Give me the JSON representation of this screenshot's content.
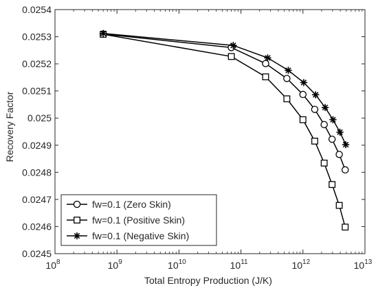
{
  "chart_data": {
    "type": "line",
    "xlabel": "Total Entropy Production (J/K)",
    "ylabel": "Recovery Factor",
    "xscale": "log",
    "xlim": [
      100000000,
      10000000000000
    ],
    "ylim": [
      0.0245,
      0.0254
    ],
    "grid": false,
    "legend_position": "bottom-left",
    "x_ticks": [
      {
        "value": 100000000,
        "base": "10",
        "exp": "8"
      },
      {
        "value": 1000000000,
        "base": "10",
        "exp": "9"
      },
      {
        "value": 10000000000,
        "base": "10",
        "exp": "10"
      },
      {
        "value": 100000000000,
        "base": "10",
        "exp": "11"
      },
      {
        "value": 1000000000000,
        "base": "10",
        "exp": "12"
      },
      {
        "value": 10000000000000,
        "base": "10",
        "exp": "13"
      }
    ],
    "y_ticks": [
      {
        "value": 0.0245,
        "label": "0.0245"
      },
      {
        "value": 0.0246,
        "label": "0.0246"
      },
      {
        "value": 0.0247,
        "label": "0.0247"
      },
      {
        "value": 0.0248,
        "label": "0.0248"
      },
      {
        "value": 0.0249,
        "label": "0.0249"
      },
      {
        "value": 0.025,
        "label": "0.025"
      },
      {
        "value": 0.0251,
        "label": "0.0251"
      },
      {
        "value": 0.0252,
        "label": "0.0252"
      },
      {
        "value": 0.0253,
        "label": "0.0253"
      },
      {
        "value": 0.0254,
        "label": "0.0254"
      }
    ],
    "series": [
      {
        "name": "fw=0.1 (Zero Skin)",
        "marker": "circle",
        "color": "#000000",
        "points": [
          [
            600000000,
            0.02531
          ],
          [
            70000000000,
            0.02526
          ],
          [
            250000000000,
            0.025201
          ],
          [
            550000000000,
            0.025146
          ],
          [
            1000000000000,
            0.025087
          ],
          [
            1550000000000,
            0.025032
          ],
          [
            2200000000000,
            0.024976
          ],
          [
            2950000000000,
            0.024922
          ],
          [
            3850000000000,
            0.024866
          ],
          [
            4800000000000,
            0.024809
          ]
        ]
      },
      {
        "name": "fw=0.1 (Positive Skin)",
        "marker": "square",
        "color": "#000000",
        "points": [
          [
            600000000,
            0.025309
          ],
          [
            70000000000,
            0.025227
          ],
          [
            250000000000,
            0.025152
          ],
          [
            550000000000,
            0.025071
          ],
          [
            1000000000000,
            0.024994
          ],
          [
            1550000000000,
            0.024915
          ],
          [
            2200000000000,
            0.024834
          ],
          [
            2950000000000,
            0.024755
          ],
          [
            3850000000000,
            0.024678
          ],
          [
            4800000000000,
            0.024598
          ]
        ]
      },
      {
        "name": "fw=0.1 (Negative Skin)",
        "marker": "asterisk",
        "color": "#000000",
        "points": [
          [
            600000000,
            0.025312
          ],
          [
            75000000000,
            0.025268
          ],
          [
            270000000000,
            0.025222
          ],
          [
            580000000000,
            0.025176
          ],
          [
            1030000000000,
            0.025131
          ],
          [
            1600000000000,
            0.025086
          ],
          [
            2280000000000,
            0.025039
          ],
          [
            3050000000000,
            0.024994
          ],
          [
            3950000000000,
            0.024948
          ],
          [
            4900000000000,
            0.024902
          ]
        ]
      }
    ]
  }
}
